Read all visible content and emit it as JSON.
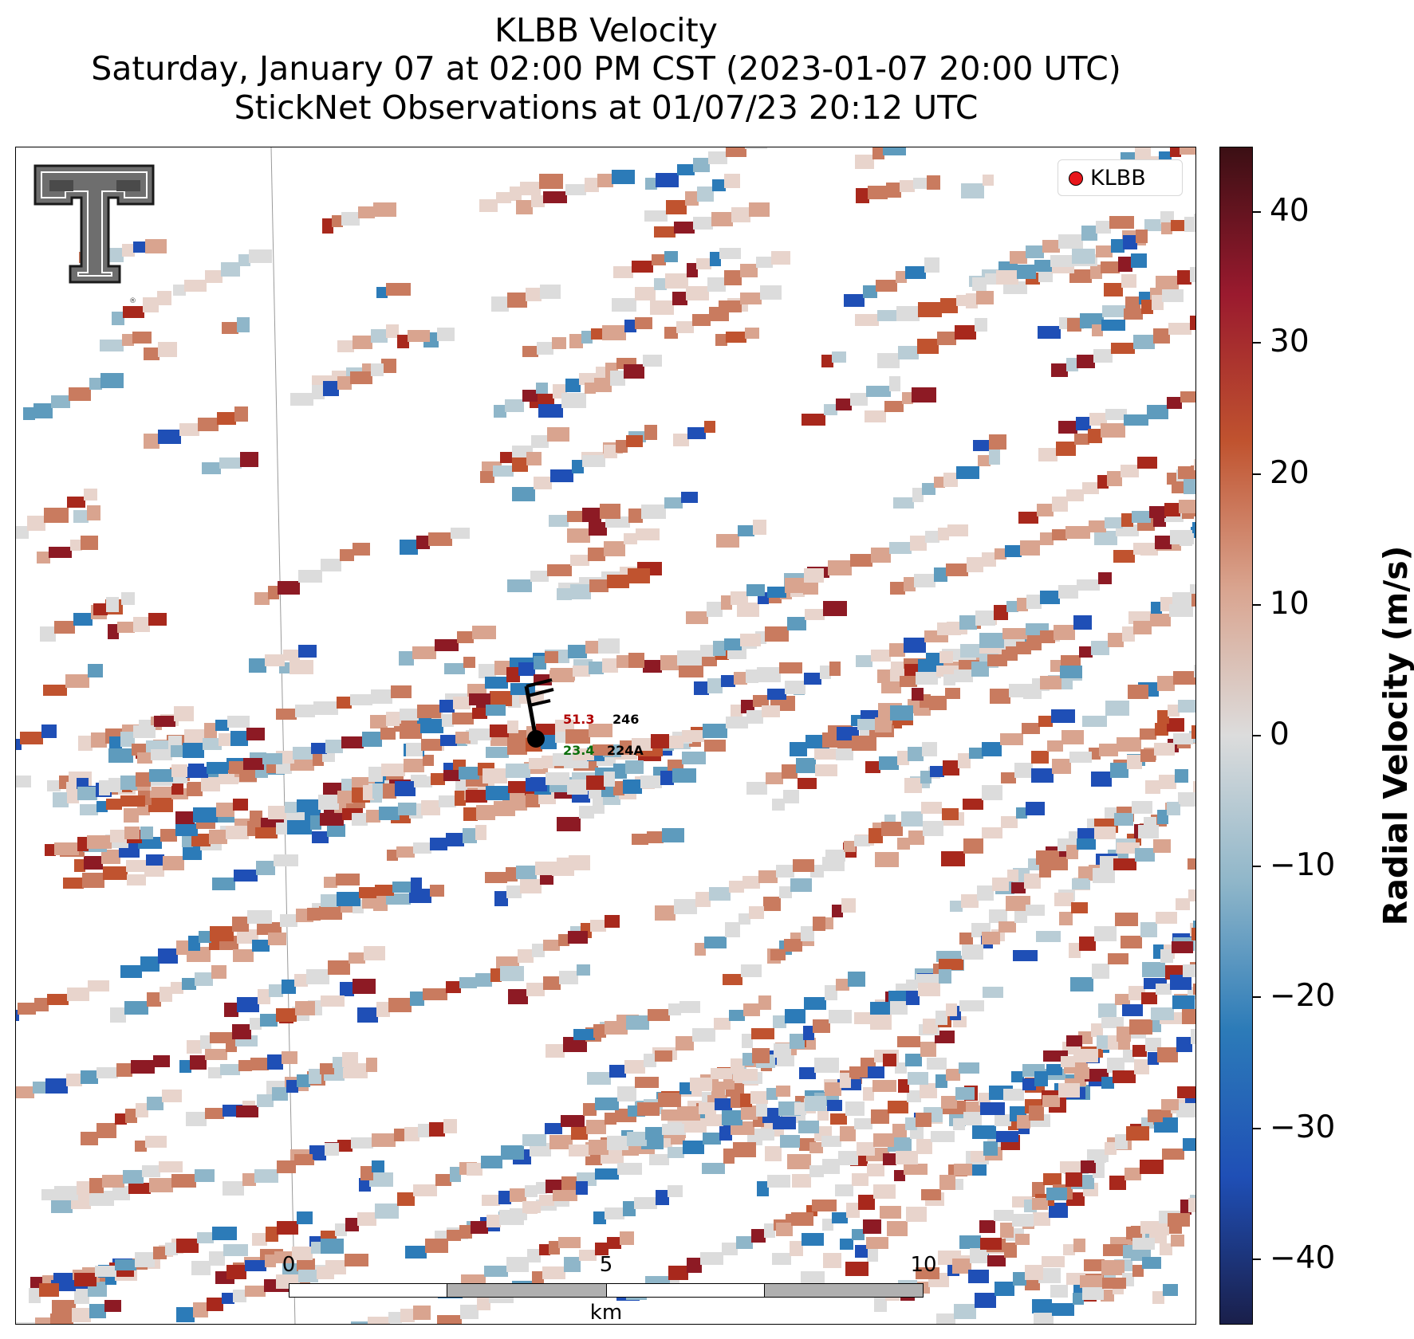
{
  "title": {
    "line1": "KLBB Velocity",
    "line2": "Saturday, January 07 at 02:00 PM CST (2023-01-07 20:00 UTC)",
    "line3": "StickNet Observations at 01/07/23 20:12 UTC"
  },
  "legend": {
    "radar_label": "KLBB",
    "marker_color": "#e8161b"
  },
  "colorbar": {
    "label": "Radial Velocity (m/s)",
    "ticks": [
      "40",
      "30",
      "20",
      "10",
      "0",
      "−10",
      "−20",
      "−30",
      "−40"
    ],
    "range_ms": [
      -45,
      45
    ],
    "colors": [
      "#1a1f4a",
      "#1f4fb6",
      "#2c7bb8",
      "#8fb6c9",
      "#dcdcdc",
      "#d9a48f",
      "#c0532f",
      "#9a1a2e",
      "#3b0f14"
    ]
  },
  "scalebar": {
    "labels": [
      "0",
      "5",
      "10"
    ],
    "unit": "km"
  },
  "stations": [
    {
      "id": "246",
      "value": "51.3",
      "value_color": "#b00000"
    },
    {
      "id": "224A",
      "value": "23.4",
      "value_color": "#0a6e0a"
    }
  ],
  "icons": {
    "logo": "texas-tech-double-t-logo"
  }
}
